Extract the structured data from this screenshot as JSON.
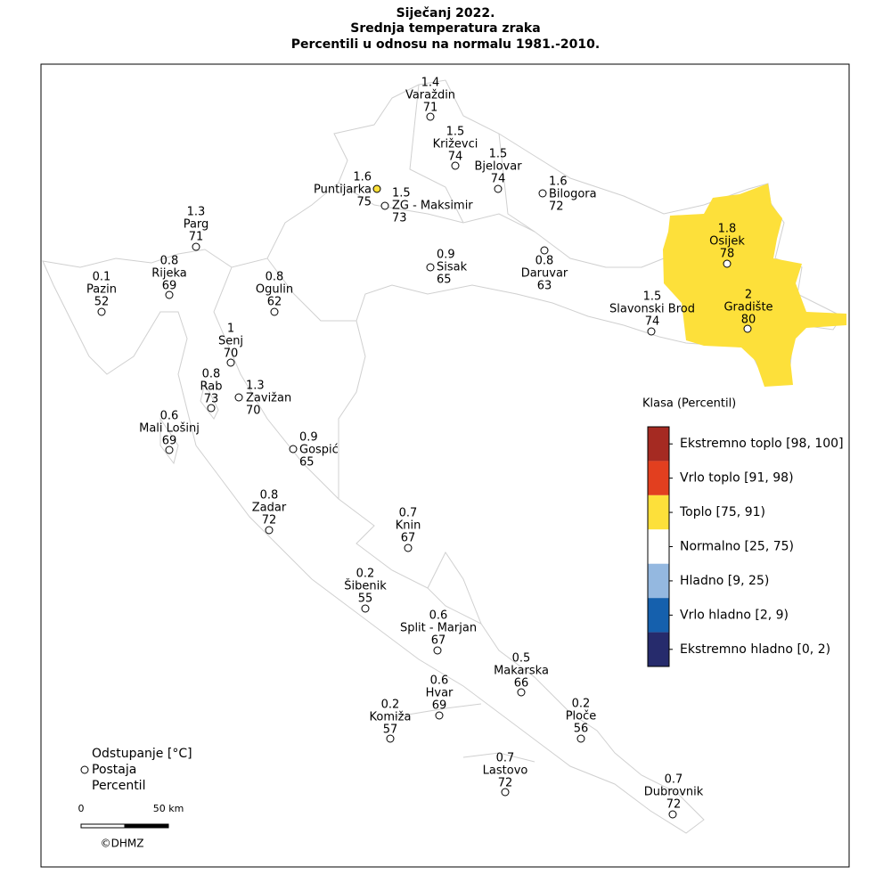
{
  "header": {
    "title": [
      "Siječanj 2022.",
      "Srednja temperatura zraka",
      "Percentili u odnosu na normalu 1981.-2010."
    ]
  },
  "stations": [
    {
      "name": "Varaždin",
      "anomaly": 1.4,
      "percentile": 71
    },
    {
      "name": "Križevci",
      "anomaly": 1.5,
      "percentile": 74
    },
    {
      "name": "Bjelovar",
      "anomaly": 1.5,
      "percentile": 74
    },
    {
      "name": "Bilogora",
      "anomaly": 1.6,
      "percentile": 72
    },
    {
      "name": "Puntijarka",
      "anomaly": 1.6,
      "percentile": 75
    },
    {
      "name": "ZG - Maksimir",
      "anomaly": 1.5,
      "percentile": 73
    },
    {
      "name": "Parg",
      "anomaly": 1.3,
      "percentile": 71
    },
    {
      "name": "Rijeka",
      "anomaly": 0.8,
      "percentile": 69
    },
    {
      "name": "Pazin",
      "anomaly": 0.1,
      "percentile": 52
    },
    {
      "name": "Ogulin",
      "anomaly": 0.8,
      "percentile": 62
    },
    {
      "name": "Sisak",
      "anomaly": 0.9,
      "percentile": 65
    },
    {
      "name": "Daruvar",
      "anomaly": 0.8,
      "percentile": 63
    },
    {
      "name": "Osijek",
      "anomaly": 1.8,
      "percentile": 78
    },
    {
      "name": "Gradište",
      "anomaly": 2,
      "percentile": 80
    },
    {
      "name": "Slavonski Brod",
      "anomaly": 1.5,
      "percentile": 74
    },
    {
      "name": "Senj",
      "anomaly": 1,
      "percentile": 70
    },
    {
      "name": "Rab",
      "anomaly": 0.8,
      "percentile": 73
    },
    {
      "name": "Zavižan",
      "anomaly": 1.3,
      "percentile": 70
    },
    {
      "name": "Mali Lošinj",
      "anomaly": 0.6,
      "percentile": 69
    },
    {
      "name": "Gospić",
      "anomaly": 0.9,
      "percentile": 65
    },
    {
      "name": "Zadar",
      "anomaly": 0.8,
      "percentile": 72
    },
    {
      "name": "Knin",
      "anomaly": 0.7,
      "percentile": 67
    },
    {
      "name": "Šibenik",
      "anomaly": 0.2,
      "percentile": 55
    },
    {
      "name": "Split - Marjan",
      "anomaly": 0.6,
      "percentile": 67
    },
    {
      "name": "Makarska",
      "anomaly": 0.5,
      "percentile": 66
    },
    {
      "name": "Hvar",
      "anomaly": 0.6,
      "percentile": 69
    },
    {
      "name": "Komiža",
      "anomaly": 0.2,
      "percentile": 57
    },
    {
      "name": "Ploče",
      "anomaly": 0.2,
      "percentile": 56
    },
    {
      "name": "Lastovo",
      "anomaly": 0.7,
      "percentile": 72
    },
    {
      "name": "Dubrovnik",
      "anomaly": 0.7,
      "percentile": 72
    }
  ],
  "legend": {
    "title": "Klasa (Percentil)",
    "classes": [
      {
        "label": "Ekstremno toplo [98, 100]",
        "color": "#a52a22"
      },
      {
        "label": "Vrlo toplo [91, 98)",
        "color": "#e23f1f"
      },
      {
        "label": "Toplo [75, 91)",
        "color": "#fde03a"
      },
      {
        "label": "Normalno [25, 75)",
        "color": "#ffffff"
      },
      {
        "label": "Hladno [9, 25)",
        "color": "#94b8e0"
      },
      {
        "label": "Vrlo hladno [2, 9)",
        "color": "#1560ad"
      },
      {
        "label": "Ekstremno hladno [0, 2)",
        "color": "#262b6c"
      }
    ]
  },
  "key": {
    "anomaly": "Odstupanje [°C]",
    "station": "Postaja",
    "percentile": "Percentil"
  },
  "scale_bar": {
    "start": "0",
    "end": "50 km"
  },
  "copyright": "©DHMZ"
}
